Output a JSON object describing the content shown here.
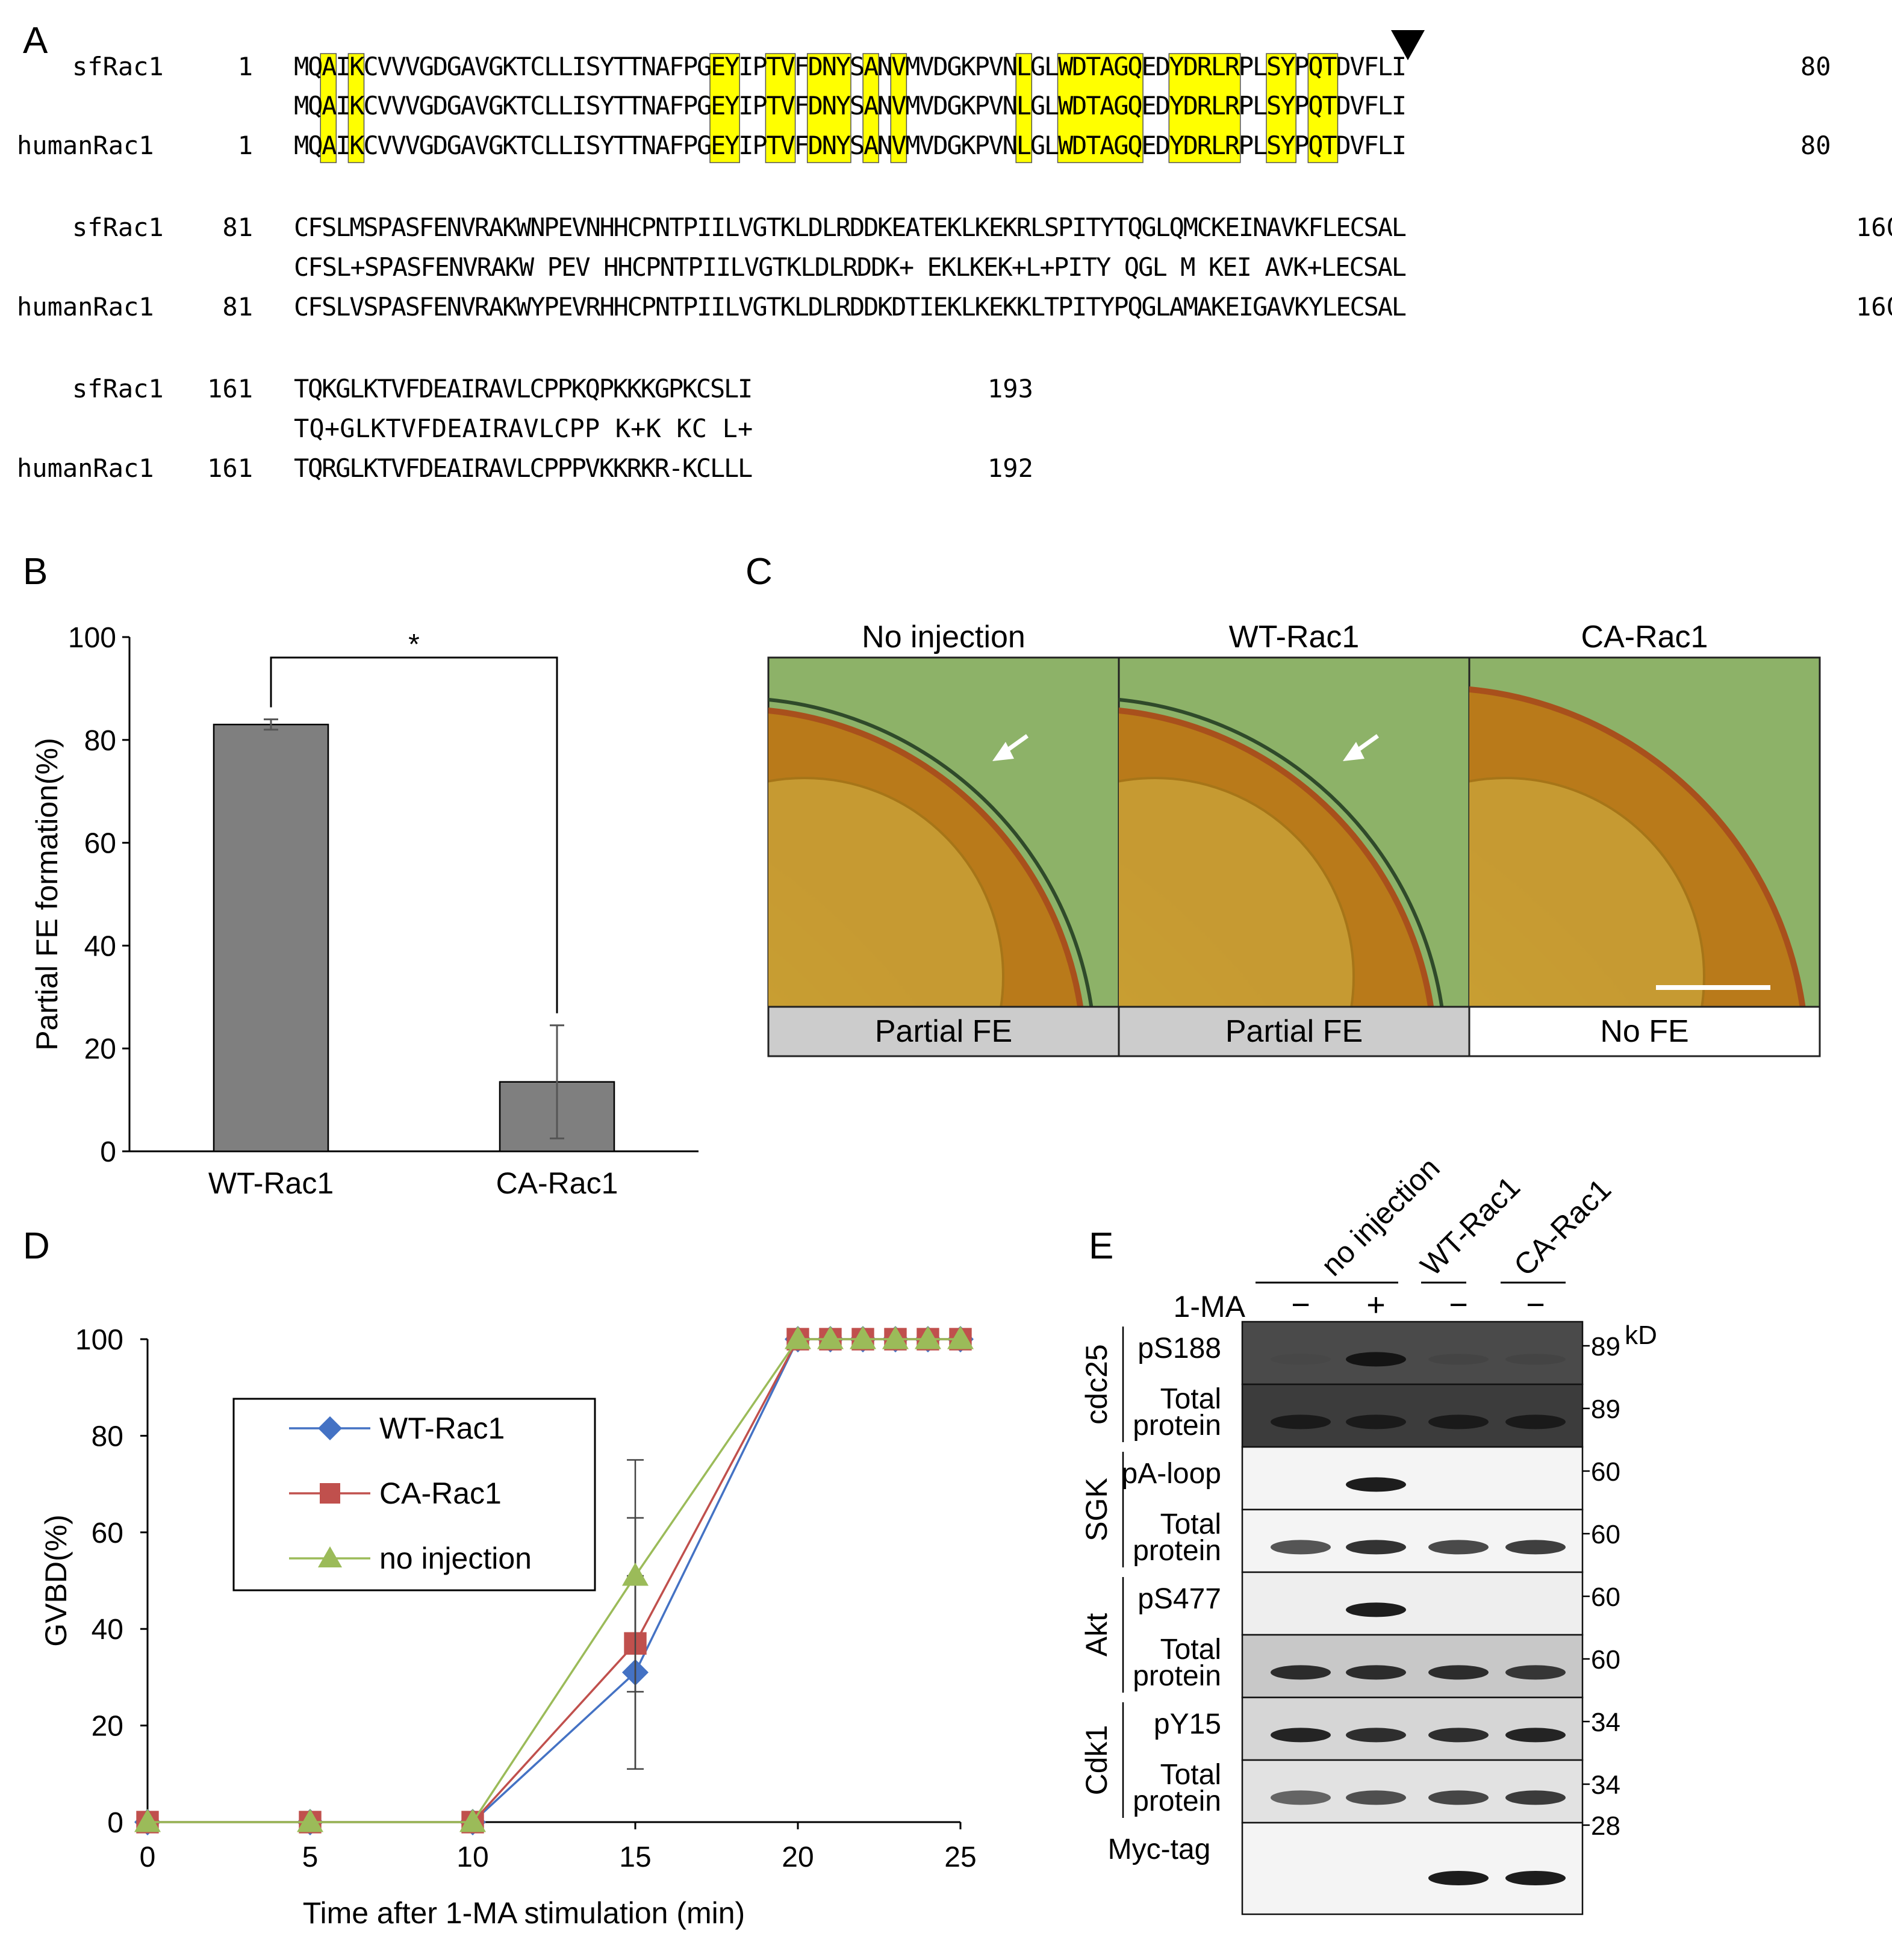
{
  "panels": {
    "A": {
      "label": "A",
      "arrowhead_marker": "black-triangle-down",
      "highlight_color": "#ffff00",
      "blocks": [
        {
          "rows": [
            {
              "name": "sfRac1",
              "start": "1",
              "seq": "MQAIKCVVVGDGAVGKTCLLISYTTNAFPGEYIPTVFDNYSANVMVDGKPVNLGLWDTAGQEDYDRLRPLSYPQTDVFLI",
              "end": "80"
            },
            {
              "name": "",
              "start": "",
              "seq": "MQAIKCVVVGDGAVGKTCLLISYTTNAFPGEYIPTVFDNYSANVMVDGKPVNLGLWDTAGQEDYDRLRPLSYPQTDVFLI",
              "end": ""
            },
            {
              "name": "humanRac1",
              "start": "1",
              "seq": "MQAIKCVVVGDGAVGKTCLLISYTTNAFPGEYIPTVFDNYSANVMVDGKPVNLGLWDTAGQEDYDRLRPLSYPQTDVFLI",
              "end": "80"
            }
          ],
          "highlights": [
            [
              2,
              2
            ],
            [
              4,
              4
            ],
            [
              30,
              31
            ],
            [
              34,
              35
            ],
            [
              37,
              39
            ],
            [
              41,
              41
            ],
            [
              43,
              43
            ],
            [
              52,
              52
            ],
            [
              55,
              60
            ],
            [
              63,
              67
            ],
            [
              70,
              71
            ],
            [
              73,
              74
            ]
          ]
        },
        {
          "rows": [
            {
              "name": "sfRac1",
              "start": "81",
              "seq": "CFSLMSPASFENVRAKWNPEVNHHCPNTPIILVGTKLDLRDDKEATEKLKEKRLSPITYTQGLQMCKEINAVKFLECSAL",
              "end": "160"
            },
            {
              "name": "",
              "start": "",
              "seq": "CFSL+SPASFENVRAKW PEV HHCPNTPIILVGTKLDLRDDK+  EKLKEK+L+PITY QGL M KEI AVK+LECSAL",
              "end": ""
            },
            {
              "name": "humanRac1",
              "start": "81",
              "seq": "CFSLVSPASFENVRAKWYPEVRHHCPNTPIILVGTKLDLRDDKDTIEKLKEKKLTPITYPQGLAMAKEIGAVKYLECSAL",
              "end": "160"
            }
          ],
          "highlights": []
        },
        {
          "rows": [
            {
              "name": "sfRac1",
              "start": "161",
              "seq": "TQKGLKTVFDEAIRAVLCPPKQPKKKGPKCSLI",
              "end": "193"
            },
            {
              "name": "",
              "start": "",
              "seq": "TQ+GLKTVFDEAIRAVLCPP   K+K  KC L+",
              "end": ""
            },
            {
              "name": "humanRac1",
              "start": "161",
              "seq": "TQRGLKTVFDEAIRAVLCPPPVKKRKR-KCLLL",
              "end": "192"
            }
          ],
          "highlights": []
        }
      ]
    },
    "B": {
      "label": "B",
      "chart_data": {
        "type": "bar",
        "categories": [
          "WT-Rac1",
          "CA-Rac1"
        ],
        "values": [
          83,
          13.5
        ],
        "errors": [
          1,
          11
        ],
        "ylabel": "Partial FE formation(%)",
        "ylim": [
          0,
          100
        ],
        "yticks": [
          0,
          20,
          40,
          60,
          80,
          100
        ],
        "bar_color": "#7f7f7f",
        "significance": "*",
        "grid": false
      }
    },
    "C": {
      "label": "C",
      "images": [
        {
          "title": "No injection",
          "caption": "Partial FE",
          "caption_bg": "#cccccc",
          "arrow": true
        },
        {
          "title": "WT-Rac1",
          "caption": "Partial FE",
          "caption_bg": "#cccccc",
          "arrow": true
        },
        {
          "title": "CA-Rac1",
          "caption": "No FE",
          "caption_bg": "#ffffff",
          "arrow": false,
          "scale_bar": true
        }
      ]
    },
    "D": {
      "label": "D",
      "chart_data": {
        "type": "line",
        "xlabel": "Time after 1-MA stimulation (min)",
        "ylabel": "GVBD(%)",
        "xlim": [
          0,
          25
        ],
        "ylim": [
          0,
          100
        ],
        "xticks": [
          0,
          5,
          10,
          15,
          20,
          25
        ],
        "yticks": [
          0,
          20,
          40,
          60,
          80,
          100
        ],
        "legend_position": "upper-left",
        "grid": false,
        "series": [
          {
            "name": "WT-Rac1",
            "color": "#4472c4",
            "marker": "diamond",
            "x": [
              0,
              5,
              10,
              15,
              20,
              21,
              22,
              23,
              24,
              25
            ],
            "y": [
              0,
              0,
              0,
              31,
              100,
              100,
              100,
              100,
              100,
              100
            ],
            "err": [
              0,
              0,
              0,
              20,
              0,
              0,
              0,
              0,
              0,
              0
            ]
          },
          {
            "name": "CA-Rac1",
            "color": "#c0504d",
            "marker": "square",
            "x": [
              0,
              5,
              10,
              15,
              20,
              21,
              22,
              23,
              24,
              25
            ],
            "y": [
              0,
              0,
              0,
              37,
              100,
              100,
              100,
              100,
              100,
              100
            ],
            "err": [
              0,
              0,
              0,
              26,
              0,
              0,
              0,
              0,
              0,
              0
            ]
          },
          {
            "name": "no injection",
            "color": "#9bbb59",
            "marker": "triangle",
            "x": [
              0,
              5,
              10,
              15,
              20,
              21,
              22,
              23,
              24,
              25
            ],
            "y": [
              0,
              0,
              0,
              51,
              100,
              100,
              100,
              100,
              100,
              100
            ],
            "err": [
              0,
              0,
              0,
              24,
              0,
              0,
              0,
              0,
              0,
              0
            ]
          }
        ]
      }
    },
    "E": {
      "label": "E",
      "lanes": {
        "groups": [
          "no injection",
          "WT-Rac1",
          "CA-Rac1"
        ],
        "treatment_label": "1-MA",
        "treatment": [
          "−",
          "+",
          "−",
          "−"
        ]
      },
      "kd_label": "kD",
      "blots": [
        {
          "group": "cdc25",
          "label": "pS188",
          "kd": "89",
          "bg": "#4a4a4a",
          "bands": [
            0.05,
            0.95,
            0.1,
            0.1
          ]
        },
        {
          "group": "cdc25",
          "label": "Total\nprotein",
          "kd": "89",
          "bg": "#3c3c3c",
          "bands": [
            0.8,
            0.8,
            0.8,
            0.8
          ]
        },
        {
          "group": "SGK",
          "label": "pA-loop",
          "kd": "60",
          "bg": "#f4f4f4",
          "bands": [
            0,
            0.95,
            0,
            0
          ]
        },
        {
          "group": "SGK",
          "label": "Total\nprotein",
          "kd": "60",
          "bg": "#f4f4f4",
          "bands": [
            0.7,
            0.85,
            0.75,
            0.8
          ]
        },
        {
          "group": "Akt",
          "label": "pS477",
          "kd": "60",
          "bg": "#eeeeee",
          "bands": [
            0,
            0.95,
            0,
            0
          ]
        },
        {
          "group": "Akt",
          "label": "Total\nprotein",
          "kd": "60",
          "bg": "#c8c8c8",
          "bands": [
            0.85,
            0.85,
            0.85,
            0.8
          ]
        },
        {
          "group": "Cdk1",
          "label": "pY15",
          "kd": "34",
          "bg": "#d6d6d6",
          "bands": [
            0.9,
            0.85,
            0.85,
            0.9
          ]
        },
        {
          "group": "Cdk1",
          "label": "Total\nprotein",
          "kd": "34",
          "bg": "#e2e2e2",
          "bands": [
            0.6,
            0.7,
            0.75,
            0.8
          ]
        },
        {
          "group": "",
          "label": "Myc-tag",
          "kd": "28",
          "bg": "#f4f4f4",
          "bands": [
            0,
            0,
            0.95,
            0.95
          ]
        }
      ],
      "groups": [
        "cdc25",
        "SGK",
        "Akt",
        "Cdk1"
      ]
    }
  }
}
